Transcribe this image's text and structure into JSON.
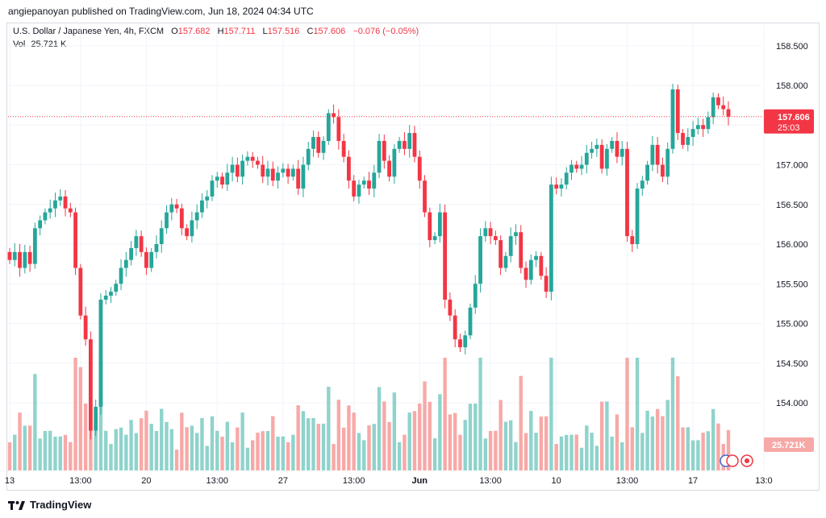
{
  "attribution": "angiepanoyan published on TradingView.com, Jun 18, 2024 04:34 UTC",
  "legend": {
    "symbol": "U.S. Dollar / Japanese Yen, 4h, FXCM",
    "o_label": "O",
    "o_value": "157.682",
    "h_label": "H",
    "h_value": "157.711",
    "l_label": "L",
    "l_value": "157.516",
    "c_label": "C",
    "c_value": "157.606",
    "change": "−0.076 (−0.05%)",
    "vol_label": "Vol",
    "vol_value": "25.721 K"
  },
  "footer": {
    "brand": "TradingView"
  },
  "colors": {
    "up": "#26a69a",
    "down": "#f23645",
    "vol_up": "#8fd3cc",
    "vol_down": "#f7a9a7",
    "grid": "#f0f3fa",
    "text": "#131722"
  },
  "chart_data": {
    "type": "candlestick",
    "symbol": "USDJPY",
    "timeframe": "4h",
    "y_axis": {
      "ticks": [
        "158.500",
        "158.000",
        "157.500",
        "157.000",
        "156.500",
        "156.000",
        "155.500",
        "155.000",
        "154.500",
        "154.000"
      ],
      "ylim": [
        153.6,
        158.75
      ]
    },
    "x_axis": {
      "ticks": [
        "13",
        "13:00",
        "20",
        "13:00",
        "27",
        "13:00",
        "Jun",
        "13:00",
        "10",
        "13:00",
        "17",
        "13:0"
      ],
      "tick_index": [
        0,
        14,
        27,
        41,
        54,
        68,
        81,
        95,
        108,
        122,
        135,
        149
      ]
    },
    "last_price": {
      "value": 157.606,
      "label": "157.606",
      "countdown": "25:03"
    },
    "last_volume_label": "25.721K",
    "candles": [
      [
        155.9,
        155.8
      ],
      [
        155.8,
        155.9
      ],
      [
        155.9,
        155.7
      ],
      [
        155.7,
        155.9
      ],
      [
        155.9,
        155.75
      ],
      [
        155.75,
        156.2
      ],
      [
        156.2,
        156.3
      ],
      [
        156.3,
        156.4
      ],
      [
        156.4,
        156.45
      ],
      [
        156.45,
        156.55
      ],
      [
        156.55,
        156.6
      ],
      [
        156.6,
        156.45
      ],
      [
        156.45,
        156.4
      ],
      [
        156.4,
        155.7
      ],
      [
        155.7,
        155.1
      ],
      [
        155.1,
        154.8
      ],
      [
        154.8,
        153.65
      ],
      [
        153.65,
        153.95
      ],
      [
        153.95,
        155.3
      ],
      [
        155.3,
        155.35
      ],
      [
        155.35,
        155.4
      ],
      [
        155.4,
        155.5
      ],
      [
        155.5,
        155.7
      ],
      [
        155.7,
        155.8
      ],
      [
        155.8,
        155.95
      ],
      [
        155.95,
        156.1
      ],
      [
        156.1,
        155.9
      ],
      [
        155.9,
        155.7
      ],
      [
        155.7,
        155.9
      ],
      [
        155.9,
        156.0
      ],
      [
        156.0,
        156.2
      ],
      [
        156.2,
        156.4
      ],
      [
        156.4,
        156.5
      ],
      [
        156.5,
        156.45
      ],
      [
        156.45,
        156.2
      ],
      [
        156.2,
        156.1
      ],
      [
        156.1,
        156.3
      ],
      [
        156.3,
        156.4
      ],
      [
        156.4,
        156.55
      ],
      [
        156.55,
        156.6
      ],
      [
        156.6,
        156.8
      ],
      [
        156.8,
        156.85
      ],
      [
        156.85,
        156.75
      ],
      [
        156.75,
        156.9
      ],
      [
        156.9,
        157.0
      ],
      [
        157.0,
        156.85
      ],
      [
        156.85,
        157.05
      ],
      [
        157.05,
        157.1
      ],
      [
        157.1,
        157.05
      ],
      [
        157.05,
        157.0
      ],
      [
        157.0,
        156.85
      ],
      [
        156.85,
        156.95
      ],
      [
        156.95,
        156.8
      ],
      [
        156.8,
        156.9
      ],
      [
        156.9,
        156.95
      ],
      [
        156.95,
        156.85
      ],
      [
        156.85,
        156.95
      ],
      [
        156.95,
        156.7
      ],
      [
        156.7,
        157.0
      ],
      [
        157.0,
        157.2
      ],
      [
        157.2,
        157.35
      ],
      [
        157.35,
        157.15
      ],
      [
        157.15,
        157.3
      ],
      [
        157.3,
        157.65
      ],
      [
        157.65,
        157.6
      ],
      [
        157.6,
        157.3
      ],
      [
        157.3,
        157.1
      ],
      [
        157.1,
        156.8
      ],
      [
        156.8,
        156.6
      ],
      [
        156.6,
        156.75
      ],
      [
        156.75,
        156.8
      ],
      [
        156.8,
        156.7
      ],
      [
        156.7,
        156.9
      ],
      [
        156.9,
        157.3
      ],
      [
        157.3,
        157.05
      ],
      [
        157.05,
        156.85
      ],
      [
        156.85,
        157.2
      ],
      [
        157.2,
        157.3
      ],
      [
        157.3,
        157.2
      ],
      [
        157.2,
        157.4
      ],
      [
        157.4,
        157.1
      ],
      [
        157.1,
        156.8
      ],
      [
        156.8,
        156.4
      ],
      [
        156.4,
        156.05
      ],
      [
        156.05,
        156.1
      ],
      [
        156.1,
        156.4
      ],
      [
        156.4,
        155.3
      ],
      [
        155.3,
        155.1
      ],
      [
        155.1,
        154.8
      ],
      [
        154.8,
        154.7
      ],
      [
        154.7,
        154.85
      ],
      [
        154.85,
        155.2
      ],
      [
        155.2,
        155.5
      ],
      [
        155.5,
        156.1
      ],
      [
        156.1,
        156.2
      ],
      [
        156.2,
        156.1
      ],
      [
        156.1,
        156.05
      ],
      [
        156.05,
        155.7
      ],
      [
        155.7,
        155.85
      ],
      [
        155.85,
        156.1
      ],
      [
        156.1,
        156.15
      ],
      [
        156.15,
        155.7
      ],
      [
        155.7,
        155.55
      ],
      [
        155.55,
        155.8
      ],
      [
        155.8,
        155.85
      ],
      [
        155.85,
        155.6
      ],
      [
        155.6,
        155.4
      ],
      [
        155.4,
        156.75
      ],
      [
        156.75,
        156.7
      ],
      [
        156.7,
        156.75
      ],
      [
        156.75,
        156.9
      ],
      [
        156.9,
        157.0
      ],
      [
        157.0,
        156.95
      ],
      [
        156.95,
        157.0
      ],
      [
        157.0,
        157.15
      ],
      [
        157.15,
        157.2
      ],
      [
        157.2,
        157.25
      ],
      [
        157.25,
        156.95
      ],
      [
        156.95,
        157.2
      ],
      [
        157.2,
        157.3
      ],
      [
        157.3,
        157.1
      ],
      [
        157.1,
        157.2
      ],
      [
        157.2,
        156.1
      ],
      [
        156.1,
        156.0
      ],
      [
        156.0,
        156.7
      ],
      [
        156.7,
        156.8
      ],
      [
        156.8,
        157.0
      ],
      [
        157.0,
        157.25
      ],
      [
        157.25,
        157.0
      ],
      [
        157.0,
        156.85
      ],
      [
        156.85,
        157.2
      ],
      [
        157.2,
        157.95
      ],
      [
        157.95,
        157.4
      ],
      [
        157.4,
        157.25
      ],
      [
        157.25,
        157.35
      ],
      [
        157.35,
        157.45
      ],
      [
        157.45,
        157.5
      ],
      [
        157.5,
        157.45
      ],
      [
        157.45,
        157.6
      ],
      [
        157.6,
        157.85
      ],
      [
        157.85,
        157.75
      ],
      [
        157.75,
        157.7
      ],
      [
        157.7,
        157.606
      ]
    ],
    "volume_max_k": 120
  }
}
